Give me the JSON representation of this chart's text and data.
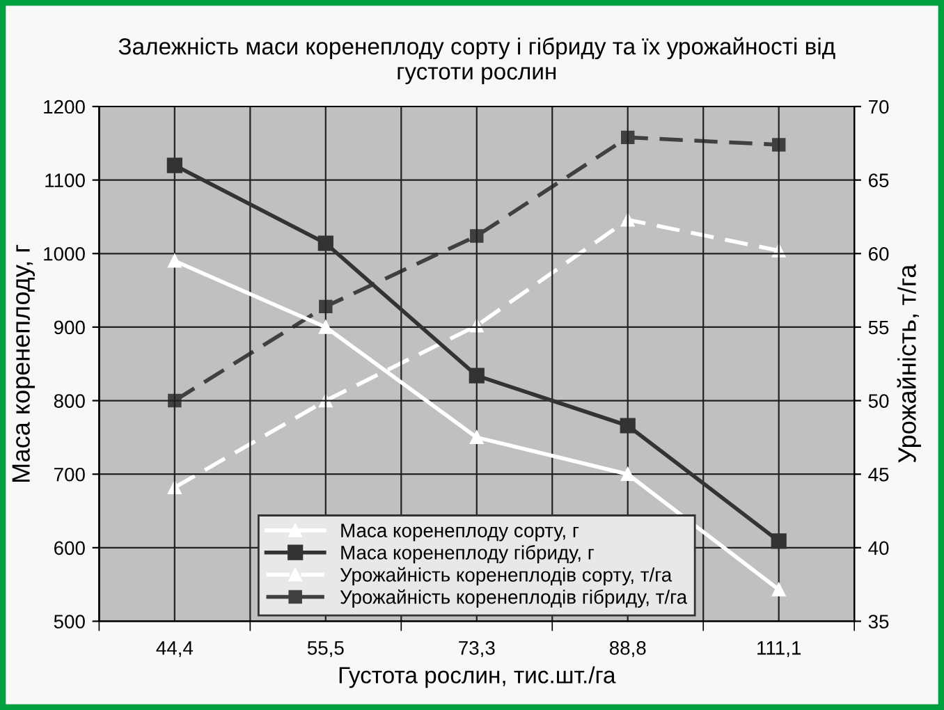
{
  "chart_data": {
    "type": "line",
    "title": "Залежність маси коренеплоду сорту і гібриду та їх урожайності від\nгустоти рослин",
    "xlabel": "Густота рослин, тис.шт./га",
    "ylabel": "Маса коренеплоду, г",
    "y2label": "Урожайність, т/га",
    "categories": [
      "44,4",
      "55,5",
      "73,3",
      "88,8",
      "111,1"
    ],
    "ylim": [
      500,
      1200
    ],
    "yticks": [
      500,
      600,
      700,
      800,
      900,
      1000,
      1100,
      1200
    ],
    "y2lim": [
      35,
      70
    ],
    "y2ticks": [
      35,
      40,
      45,
      50,
      55,
      60,
      65,
      70
    ],
    "grid": true,
    "legend": "bottom",
    "series": [
      {
        "name": "Маса коренеплоду сорту, г",
        "color": "#ffffff",
        "marker": "triangle",
        "line_style": "solid",
        "values": [
          990,
          900,
          750,
          700,
          543
        ]
      },
      {
        "name": "Маса коренеплоду гібриду, г",
        "color": "#333333",
        "marker": "square",
        "line_style": "solid",
        "values": [
          1120,
          1014,
          834,
          766,
          609
        ]
      },
      {
        "name": "Урожайність коренеплодів сорту, т/га",
        "color": "#ffffff",
        "marker": "triangle",
        "line_style": "dashed",
        "axis": "y2",
        "values": [
          44.1,
          50,
          55.1,
          62.3,
          60.2
        ]
      },
      {
        "name": "Урожайність коренеплодів гібриду, т/га",
        "color": "#404040",
        "marker": "square",
        "line_style": "dashed",
        "axis": "y2",
        "values": [
          50,
          56.4,
          61.2,
          67.9,
          67.4
        ]
      }
    ]
  }
}
